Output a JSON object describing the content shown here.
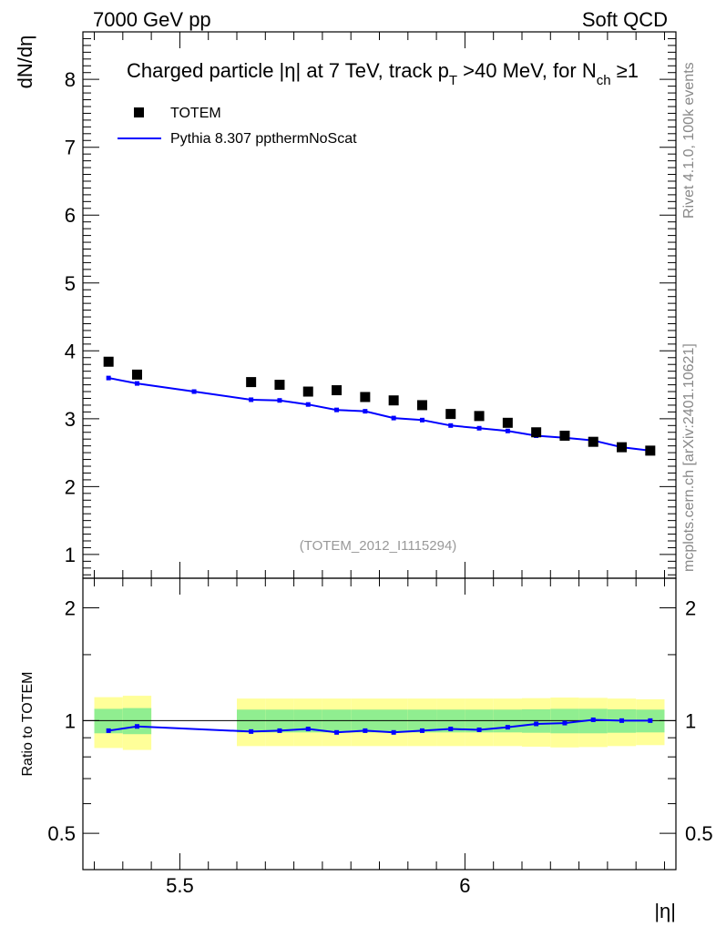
{
  "header": {
    "left": "7000 GeV pp",
    "right": "Soft QCD"
  },
  "side_labels": {
    "rivet": "Rivet 4.1.0,  100k events",
    "mcplots": "mcplots.cern.ch [arXiv:2401.10621]"
  },
  "chart_data": [
    {
      "type": "scatter",
      "title_parts": {
        "pre": "Charged particle |",
        "eta": "η",
        "mid": "| at 7 TeV, track p",
        "sub1": "T",
        "mid2": " >40 MeV, for N",
        "sub2": "ch",
        "post": " ≥1"
      },
      "ylabel": "dN/dη",
      "watermark": "(TOTEM_2012_I1115294)",
      "xlim": [
        5.33,
        6.37
      ],
      "ylim": [
        0.65,
        8.7
      ],
      "yticks": [
        1,
        2,
        3,
        4,
        5,
        6,
        7,
        8
      ],
      "series": [
        {
          "name": "TOTEM",
          "color": "#000000",
          "x": [
            5.375,
            5.425,
            5.625,
            5.675,
            5.725,
            5.775,
            5.825,
            5.875,
            5.925,
            5.975,
            6.025,
            6.075,
            6.125,
            6.175,
            6.225,
            6.275,
            6.325
          ],
          "y": [
            3.84,
            3.65,
            3.54,
            3.5,
            3.4,
            3.42,
            3.32,
            3.27,
            3.2,
            3.07,
            3.04,
            2.94,
            2.8,
            2.75,
            2.66,
            2.58,
            2.53
          ]
        },
        {
          "name": "Pythia 8.307 ppthermNoScat",
          "color": "#0000ff",
          "x": [
            5.375,
            5.425,
            5.525,
            5.625,
            5.675,
            5.725,
            5.775,
            5.825,
            5.875,
            5.925,
            5.975,
            6.025,
            6.075,
            6.125,
            6.175,
            6.225,
            6.275,
            6.325
          ],
          "y": [
            3.6,
            3.52,
            3.4,
            3.28,
            3.27,
            3.21,
            3.13,
            3.11,
            3.01,
            2.98,
            2.9,
            2.86,
            2.82,
            2.75,
            2.72,
            2.68,
            2.58,
            2.53
          ]
        }
      ]
    },
    {
      "type": "line",
      "ylabel": "Ratio to TOTEM",
      "xlabel": "|η|",
      "xlim": [
        5.33,
        6.37
      ],
      "ylim": [
        0.4,
        2.4
      ],
      "log_y": true,
      "reference": 1,
      "xticks": [
        {
          "value": 5.5,
          "label": "5.5"
        },
        {
          "value": 6.0,
          "label": "6"
        }
      ],
      "yticks": [
        {
          "value": 0.5,
          "label": "0.5"
        },
        {
          "value": 1,
          "label": "1"
        },
        {
          "value": 2,
          "label": "2"
        }
      ],
      "bands": [
        {
          "x0": 5.35,
          "x1": 5.4,
          "in_lo": 0.925,
          "in_hi": 1.075,
          "out_lo": 0.845,
          "out_hi": 1.155
        },
        {
          "x0": 5.4,
          "x1": 5.45,
          "in_lo": 0.92,
          "in_hi": 1.08,
          "out_lo": 0.835,
          "out_hi": 1.165
        },
        {
          "x0": 5.6,
          "x1": 5.65,
          "in_lo": 0.93,
          "in_hi": 1.07,
          "out_lo": 0.855,
          "out_hi": 1.145
        },
        {
          "x0": 5.65,
          "x1": 5.7,
          "in_lo": 0.93,
          "in_hi": 1.07,
          "out_lo": 0.855,
          "out_hi": 1.145
        },
        {
          "x0": 5.7,
          "x1": 5.75,
          "in_lo": 0.93,
          "in_hi": 1.07,
          "out_lo": 0.855,
          "out_hi": 1.145
        },
        {
          "x0": 5.75,
          "x1": 5.8,
          "in_lo": 0.93,
          "in_hi": 1.07,
          "out_lo": 0.855,
          "out_hi": 1.145
        },
        {
          "x0": 5.8,
          "x1": 5.85,
          "in_lo": 0.93,
          "in_hi": 1.07,
          "out_lo": 0.855,
          "out_hi": 1.145
        },
        {
          "x0": 5.85,
          "x1": 5.9,
          "in_lo": 0.93,
          "in_hi": 1.07,
          "out_lo": 0.855,
          "out_hi": 1.145
        },
        {
          "x0": 5.9,
          "x1": 5.95,
          "in_lo": 0.93,
          "in_hi": 1.07,
          "out_lo": 0.855,
          "out_hi": 1.145
        },
        {
          "x0": 5.95,
          "x1": 6.0,
          "in_lo": 0.93,
          "in_hi": 1.07,
          "out_lo": 0.855,
          "out_hi": 1.145
        },
        {
          "x0": 6.0,
          "x1": 6.05,
          "in_lo": 0.93,
          "in_hi": 1.07,
          "out_lo": 0.855,
          "out_hi": 1.145
        },
        {
          "x0": 6.05,
          "x1": 6.1,
          "in_lo": 0.93,
          "in_hi": 1.07,
          "out_lo": 0.855,
          "out_hi": 1.145
        },
        {
          "x0": 6.1,
          "x1": 6.15,
          "in_lo": 0.928,
          "in_hi": 1.072,
          "out_lo": 0.852,
          "out_hi": 1.148
        },
        {
          "x0": 6.15,
          "x1": 6.2,
          "in_lo": 0.925,
          "in_hi": 1.075,
          "out_lo": 0.848,
          "out_hi": 1.152
        },
        {
          "x0": 6.2,
          "x1": 6.25,
          "in_lo": 0.925,
          "in_hi": 1.075,
          "out_lo": 0.85,
          "out_hi": 1.15
        },
        {
          "x0": 6.25,
          "x1": 6.3,
          "in_lo": 0.928,
          "in_hi": 1.072,
          "out_lo": 0.855,
          "out_hi": 1.145
        },
        {
          "x0": 6.3,
          "x1": 6.35,
          "in_lo": 0.93,
          "in_hi": 1.07,
          "out_lo": 0.86,
          "out_hi": 1.14
        }
      ],
      "band_colors": {
        "inner": "#90ee90",
        "outer": "#ffff99"
      },
      "series": [
        {
          "name": "Pythia 8.307 ppthermNoScat",
          "color": "#0000ff",
          "x": [
            5.375,
            5.425,
            5.625,
            5.675,
            5.725,
            5.775,
            5.825,
            5.875,
            5.925,
            5.975,
            6.025,
            6.075,
            6.125,
            6.175,
            6.225,
            6.275,
            6.325
          ],
          "y": [
            0.94,
            0.965,
            0.935,
            0.94,
            0.95,
            0.93,
            0.94,
            0.93,
            0.94,
            0.95,
            0.945,
            0.96,
            0.98,
            0.985,
            1.005,
            1.0,
            1.0
          ]
        }
      ]
    }
  ]
}
